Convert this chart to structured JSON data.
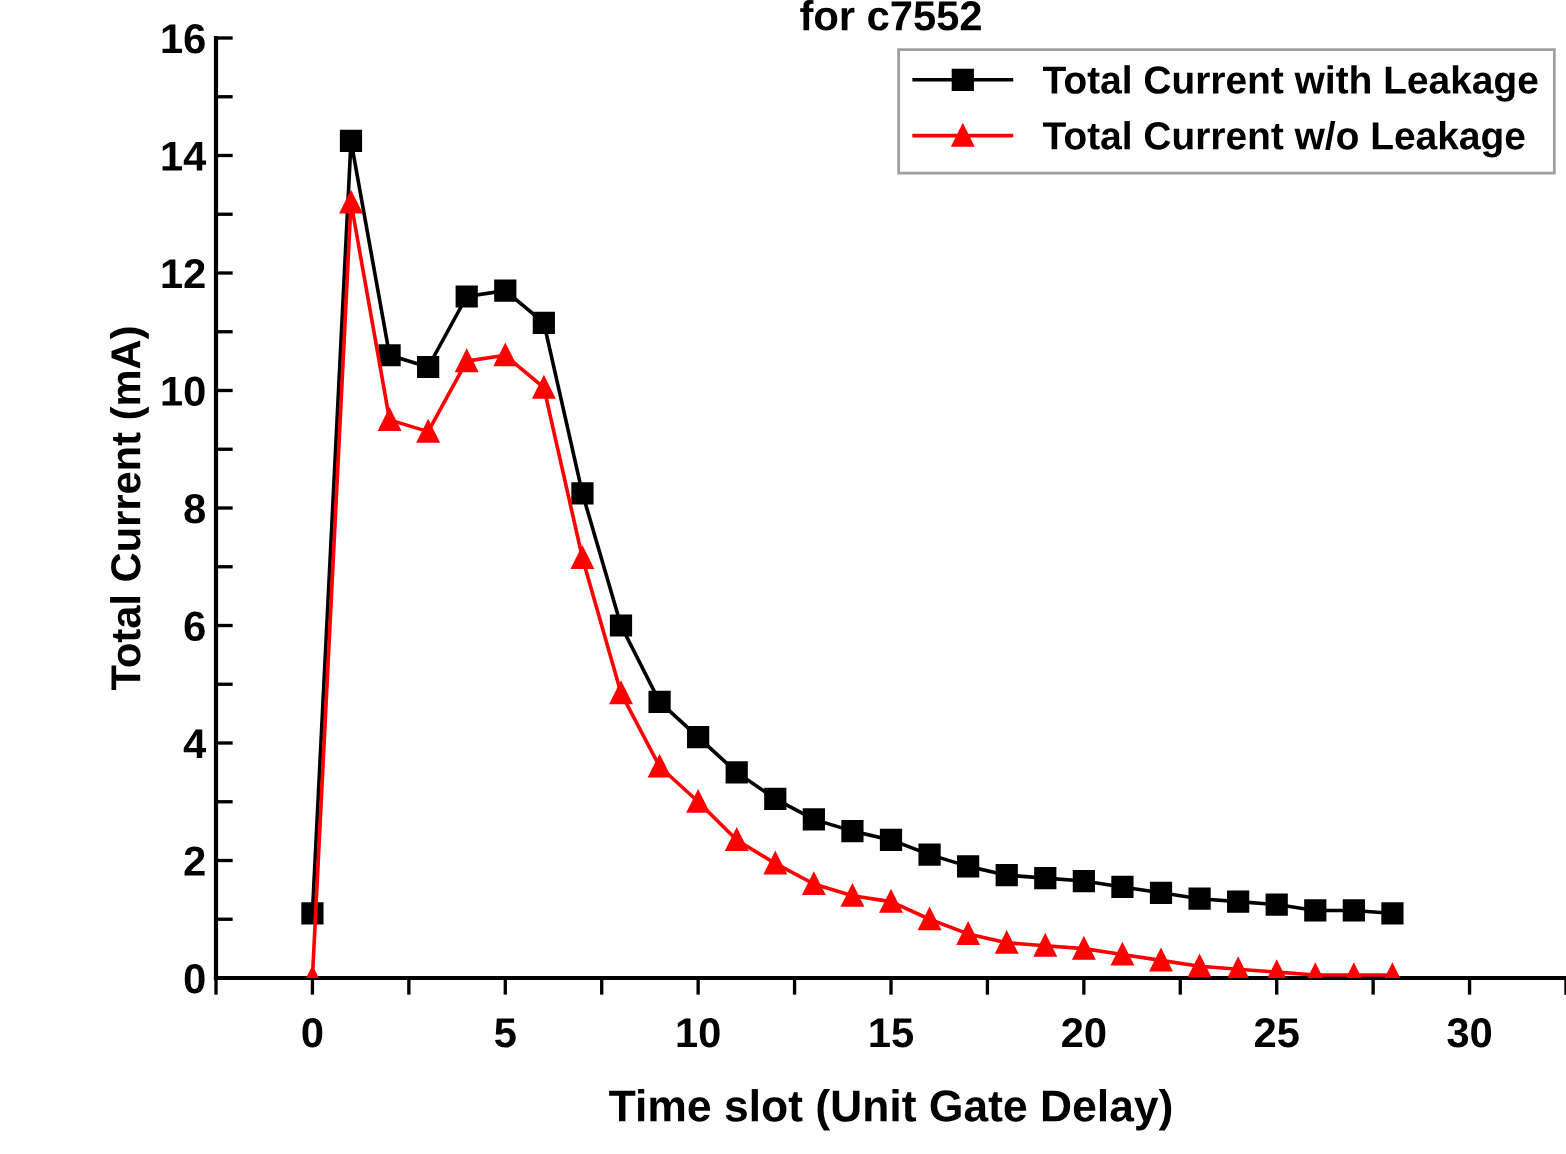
{
  "chart_data": {
    "type": "line",
    "title": "for c7552",
    "xlabel": "Time slot (Unit Gate Delay)",
    "ylabel": "Total Current (mA)",
    "x": [
      0,
      1,
      2,
      3,
      4,
      5,
      6,
      7,
      8,
      9,
      10,
      11,
      12,
      13,
      14,
      15,
      16,
      17,
      18,
      19,
      20,
      21,
      22,
      23,
      24,
      25,
      26,
      27,
      28
    ],
    "series": [
      {
        "name": "Total Current with Leakage",
        "color": "#000000",
        "marker": "square",
        "values": [
          1.1,
          14.25,
          10.6,
          10.4,
          11.6,
          11.7,
          11.15,
          8.25,
          6.0,
          4.7,
          4.1,
          3.5,
          3.05,
          2.7,
          2.5,
          2.35,
          2.1,
          1.9,
          1.75,
          1.7,
          1.65,
          1.55,
          1.45,
          1.35,
          1.3,
          1.25,
          1.15,
          1.15,
          1.1
        ]
      },
      {
        "name": "Total Current w/o Leakage",
        "color": "#ff0000",
        "marker": "triangle",
        "values": [
          0,
          13.2,
          9.5,
          9.3,
          10.5,
          10.6,
          10.05,
          7.15,
          4.85,
          3.6,
          3.0,
          2.35,
          1.95,
          1.6,
          1.4,
          1.3,
          1.0,
          0.75,
          0.6,
          0.55,
          0.5,
          0.4,
          0.3,
          0.2,
          0.15,
          0.1,
          0.05,
          0.05,
          0.05
        ]
      }
    ],
    "xlim": [
      -2.5,
      32.5
    ],
    "ylim": [
      0,
      16
    ],
    "xticks": [
      {
        "value": -2.5,
        "label": null
      },
      0,
      {
        "value": 2.5,
        "label": null
      },
      5,
      {
        "value": 7.5,
        "label": null
      },
      10,
      {
        "value": 12.5,
        "label": null
      },
      15,
      {
        "value": 17.5,
        "label": null
      },
      20,
      {
        "value": 22.5,
        "label": null
      },
      25,
      {
        "value": 27.5,
        "label": null
      },
      30,
      {
        "value": 32.5,
        "label": null
      }
    ],
    "yticks": [
      0,
      {
        "value": 1,
        "label": null
      },
      2,
      {
        "value": 3,
        "label": null
      },
      4,
      {
        "value": 5,
        "label": null
      },
      6,
      {
        "value": 7,
        "label": null
      },
      8,
      {
        "value": 9,
        "label": null
      },
      10,
      {
        "value": 11,
        "label": null
      },
      12,
      {
        "value": 13,
        "label": null
      },
      14,
      {
        "value": 15,
        "label": null
      },
      16
    ],
    "line_style": "solid",
    "grid": false,
    "legend": "top right"
  }
}
